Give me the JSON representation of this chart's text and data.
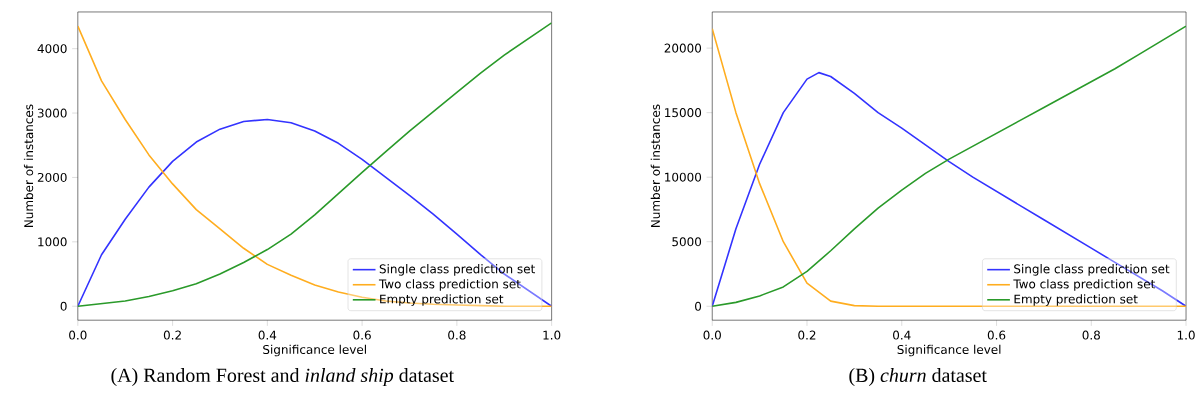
{
  "chart_data": [
    {
      "type": "line",
      "xlabel": "Significance level",
      "ylabel": "Number of instances",
      "xlim": [
        0,
        1
      ],
      "xticks": [
        {
          "value": 0,
          "label": "0.0"
        },
        {
          "value": 0.2,
          "label": "0.2"
        },
        {
          "value": 0.4,
          "label": "0.4"
        },
        {
          "value": 0.6,
          "label": "0.6"
        },
        {
          "value": 0.8,
          "label": "0.8"
        },
        {
          "value": 1,
          "label": "1.0"
        }
      ],
      "ylim": [
        -217,
        4570
      ],
      "yticks": [
        0,
        1000,
        2000,
        3000,
        4000
      ],
      "legend": "bottom right",
      "x": [
        0,
        0.05,
        0.1,
        0.15,
        0.2,
        0.25,
        0.3,
        0.35,
        0.4,
        0.45,
        0.5,
        0.55,
        0.6,
        0.65,
        0.7,
        0.75,
        0.8,
        0.85,
        0.9,
        0.95,
        1
      ],
      "series": [
        {
          "name": "Single class prediction set",
          "color": "#3333ff",
          "values": [
            0,
            800,
            1350,
            1850,
            2250,
            2550,
            2750,
            2870,
            2900,
            2850,
            2720,
            2530,
            2280,
            2000,
            1720,
            1430,
            1120,
            800,
            500,
            250,
            0
          ]
        },
        {
          "name": "Two class prediction set",
          "color": "#ffad1f",
          "values": [
            4350,
            3500,
            2900,
            2350,
            1900,
            1500,
            1200,
            900,
            650,
            480,
            330,
            220,
            140,
            80,
            50,
            30,
            20,
            10,
            0,
            0,
            0
          ]
        },
        {
          "name": "Empty prediction set",
          "color": "#2a9a2a",
          "values": [
            0,
            40,
            80,
            150,
            240,
            350,
            500,
            680,
            880,
            1120,
            1420,
            1750,
            2080,
            2400,
            2720,
            3020,
            3320,
            3620,
            3900,
            4150,
            4400
          ]
        }
      ],
      "annotations": [
        "(A) Random Forest and *inland ship* dataset"
      ]
    },
    {
      "type": "line",
      "xlabel": "Significance level",
      "ylabel": "Number of instances",
      "xlim": [
        0,
        1
      ],
      "xticks": [
        {
          "value": 0,
          "label": "0.0"
        },
        {
          "value": 0.2,
          "label": "0.2"
        },
        {
          "value": 0.4,
          "label": "0.4"
        },
        {
          "value": 0.6,
          "label": "0.6"
        },
        {
          "value": 0.8,
          "label": "0.8"
        },
        {
          "value": 1,
          "label": "1.0"
        }
      ],
      "ylim": [
        -1080,
        22800
      ],
      "yticks": [
        0,
        5000,
        10000,
        15000,
        20000
      ],
      "legend": "bottom right",
      "x": [
        0,
        0.05,
        0.1,
        0.15,
        0.2,
        0.25,
        0.3,
        0.35,
        0.4,
        0.45,
        0.5,
        0.55,
        0.6,
        0.65,
        0.7,
        0.75,
        0.8,
        0.85,
        0.9,
        0.95,
        1
      ],
      "series": [
        {
          "name": "Single class prediction set",
          "color": "#3333ff",
          "x": [
            0,
            0.05,
            0.1,
            0.15,
            0.2,
            0.225,
            0.25,
            0.3,
            0.35,
            0.4,
            0.45,
            0.5,
            0.55,
            0.6,
            0.65,
            0.7,
            0.75,
            0.8,
            0.85,
            0.9,
            0.95,
            1
          ],
          "values": [
            0,
            6000,
            11000,
            15000,
            17600,
            18100,
            17800,
            16500,
            15000,
            13800,
            12500,
            11200,
            10000,
            8900,
            7800,
            6700,
            5600,
            4500,
            3400,
            2300,
            1200,
            0
          ]
        },
        {
          "name": "Two class prediction set",
          "color": "#ffad1f",
          "values": [
            21500,
            15000,
            9500,
            5000,
            1800,
            400,
            50,
            0,
            0,
            0,
            0,
            0,
            0,
            0,
            0,
            0,
            0,
            0,
            0,
            0,
            0
          ]
        },
        {
          "name": "Empty prediction set",
          "color": "#2a9a2a",
          "values": [
            0,
            300,
            800,
            1500,
            2700,
            4300,
            6000,
            7600,
            9000,
            10300,
            11400,
            12400,
            13400,
            14400,
            15400,
            16400,
            17400,
            18400,
            19500,
            20600,
            21700
          ]
        }
      ],
      "annotations": [
        "(B) *churn* dataset"
      ]
    }
  ]
}
